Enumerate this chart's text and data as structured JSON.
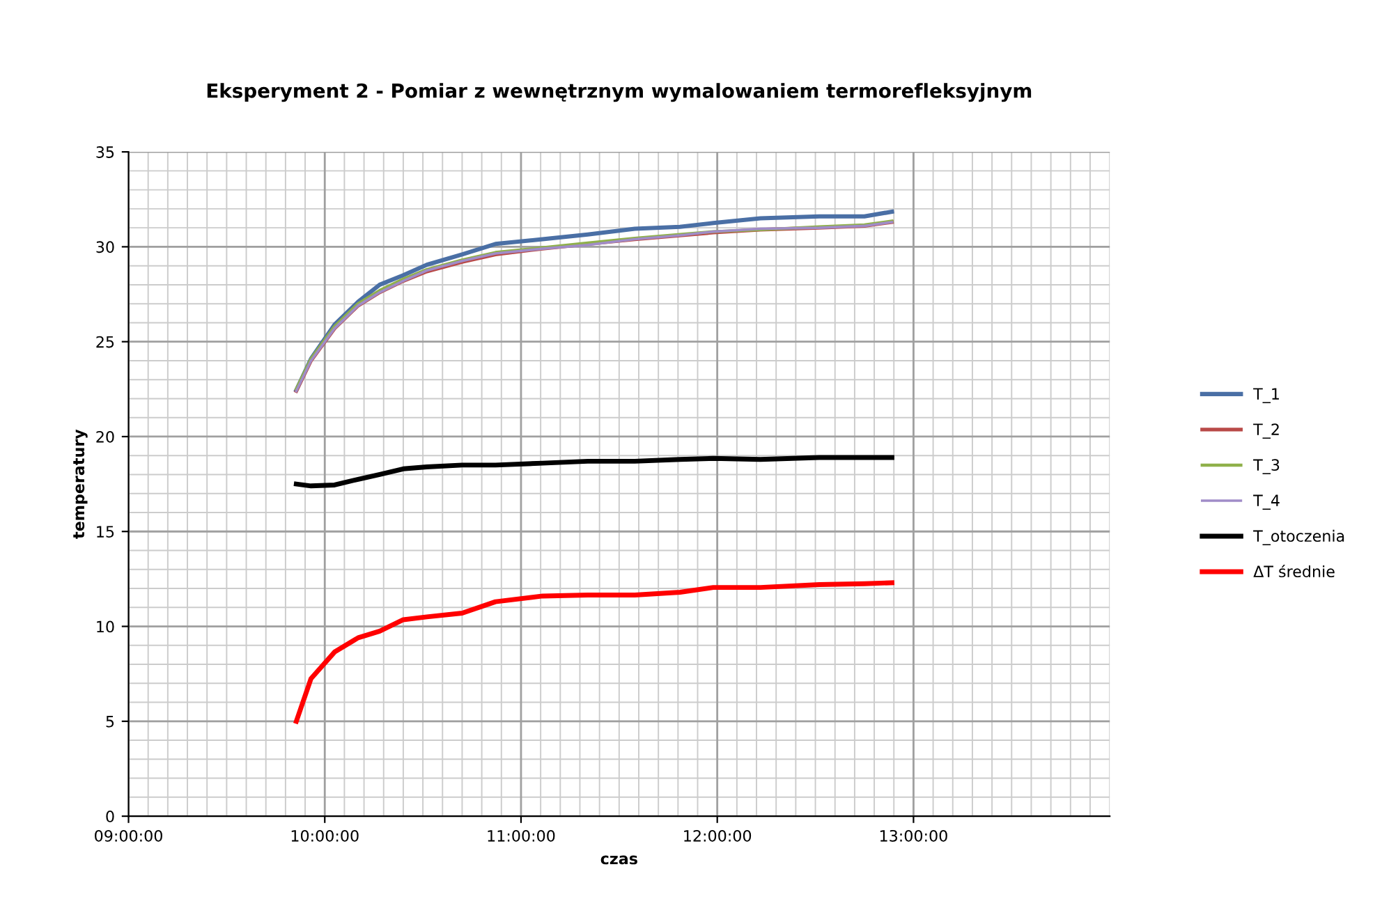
{
  "chart_data": {
    "type": "line",
    "title": "Eksperyment 2 - Pomiar z wewnętrznym wymalowaniem termorefleksyjnym",
    "xlabel": "czas",
    "ylabel": "temperatury",
    "x": [
      9.855,
      9.93,
      10.05,
      10.17,
      10.28,
      10.4,
      10.52,
      10.7,
      10.87,
      11.11,
      11.34,
      11.58,
      11.81,
      11.98,
      12.22,
      12.52,
      12.75,
      12.89
    ],
    "series": [
      {
        "name": "T_1",
        "color": "#4a6fa5",
        "values": [
          22.45,
          24.1,
          25.9,
          27.1,
          28.0,
          28.5,
          29.05,
          29.6,
          30.15,
          30.4,
          30.65,
          30.95,
          31.05,
          31.25,
          31.5,
          31.6,
          31.6,
          31.85
        ]
      },
      {
        "name": "T_2",
        "color": "#b94a48",
        "values": [
          22.4,
          24.0,
          25.7,
          26.9,
          27.6,
          28.2,
          28.7,
          29.2,
          29.6,
          29.9,
          30.15,
          30.4,
          30.6,
          30.75,
          30.9,
          31.0,
          31.1,
          31.3
        ]
      },
      {
        "name": "T_3",
        "color": "#8fb04a",
        "values": [
          22.5,
          24.1,
          25.8,
          27.0,
          27.7,
          28.3,
          28.8,
          29.3,
          29.7,
          29.95,
          30.2,
          30.45,
          30.65,
          30.8,
          30.9,
          31.05,
          31.15,
          31.35
        ]
      },
      {
        "name": "T_4",
        "color": "#a08cc8",
        "values": [
          22.4,
          24.0,
          25.7,
          26.9,
          27.6,
          28.2,
          28.75,
          29.25,
          29.65,
          29.9,
          30.1,
          30.4,
          30.6,
          30.8,
          30.95,
          31.0,
          31.1,
          31.3
        ]
      },
      {
        "name": "T_otoczenia",
        "color": "#000000",
        "values": [
          17.5,
          17.4,
          17.45,
          17.75,
          18.0,
          18.3,
          18.4,
          18.5,
          18.5,
          18.6,
          18.7,
          18.7,
          18.8,
          18.85,
          18.8,
          18.9,
          18.9,
          18.9
        ]
      },
      {
        "name": "ΔT średnie",
        "color": "#ff0000",
        "values": [
          5.0,
          7.25,
          8.65,
          9.4,
          9.75,
          10.35,
          10.5,
          10.7,
          11.3,
          11.6,
          11.65,
          11.65,
          11.8,
          12.05,
          12.05,
          12.2,
          12.25,
          12.3
        ]
      }
    ],
    "xlim": [
      9,
      14
    ],
    "xticks": [
      {
        "value": 9,
        "label": "09:00:00"
      },
      {
        "value": 10,
        "label": "10:00:00"
      },
      {
        "value": 11,
        "label": "11:00:00"
      },
      {
        "value": 12,
        "label": "12:00:00"
      },
      {
        "value": 13,
        "label": "13:00:00"
      }
    ],
    "ylim": [
      0,
      35
    ],
    "yticks": [
      0,
      5,
      10,
      15,
      20,
      25,
      30,
      35
    ],
    "grid": true,
    "legend": "right",
    "marker": "none",
    "line_style": "solid"
  }
}
